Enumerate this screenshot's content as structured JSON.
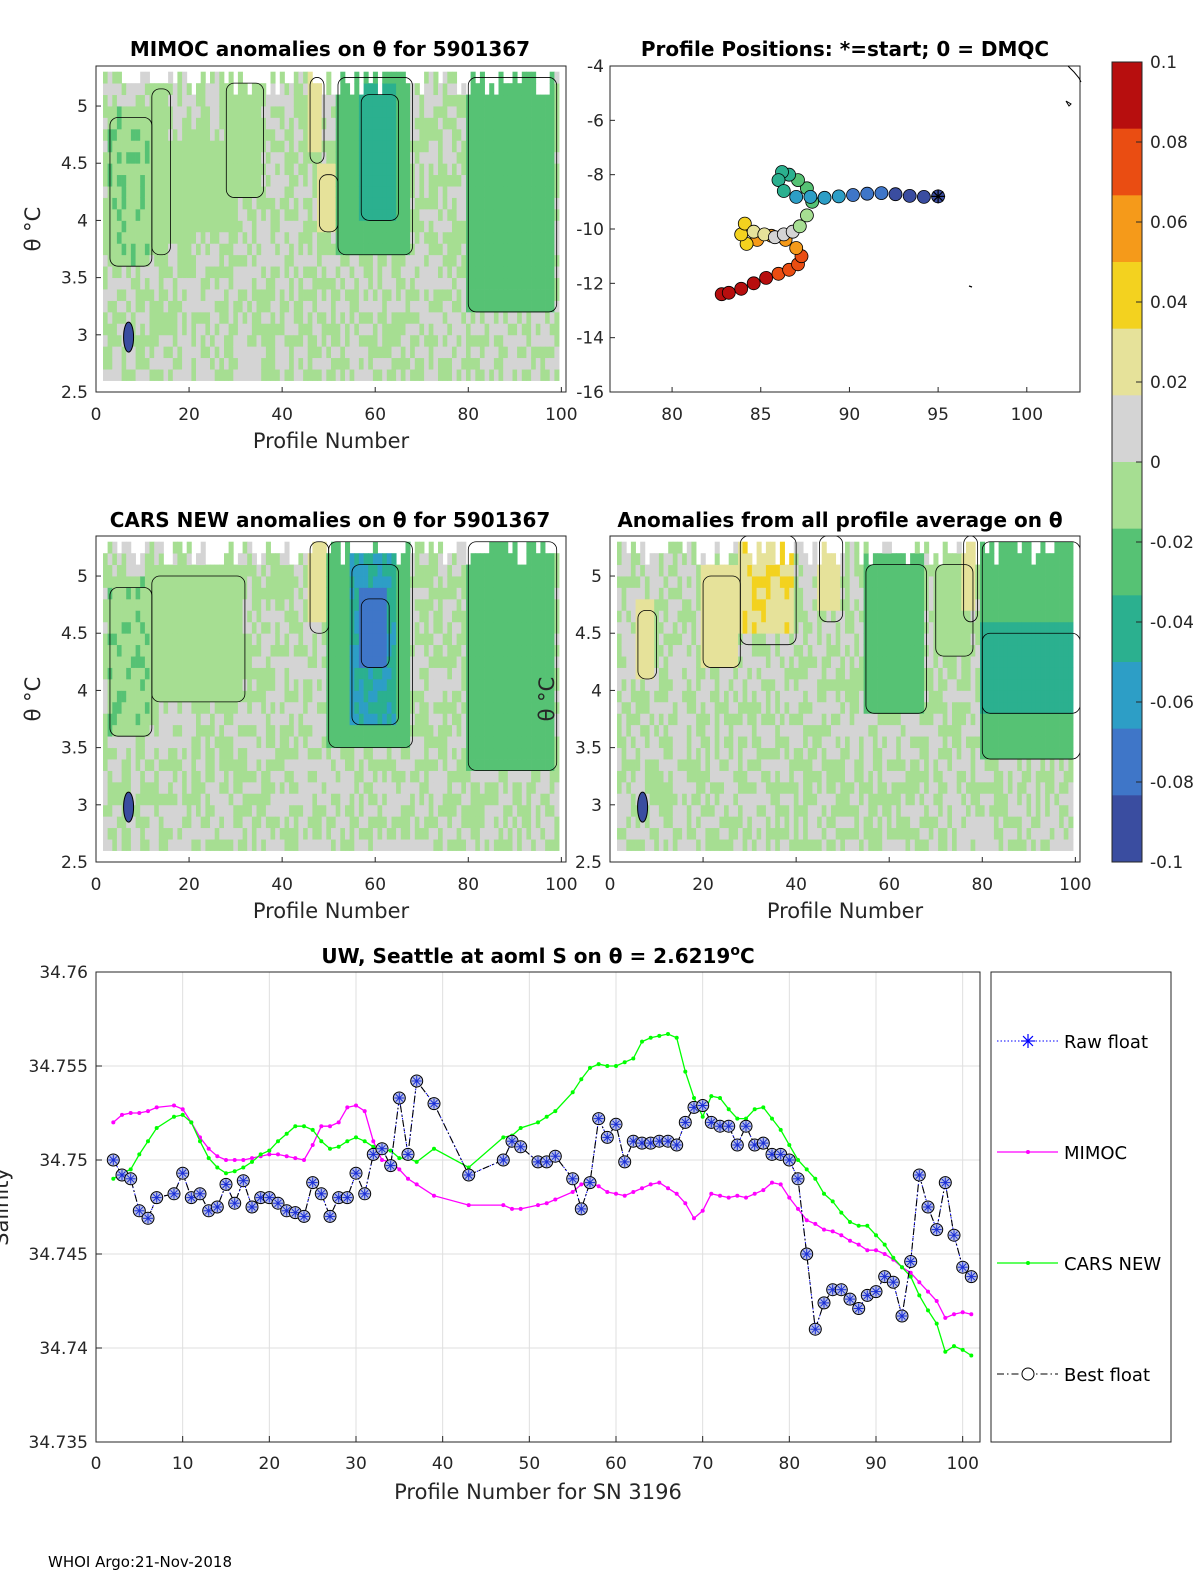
{
  "footer": "WHOI Argo:21-Nov-2018",
  "chart_data": [
    {
      "type": "heatmap",
      "title": "MIMOC anomalies on θ  for 5901367",
      "xlabel": "Profile Number",
      "ylabel": "θ °C",
      "xlim": [
        0,
        101
      ],
      "ylim": [
        2.5,
        5.35
      ],
      "xticks": [
        "0",
        "20",
        "40",
        "60",
        "80",
        "100"
      ],
      "yticks": [
        "2.5",
        "3",
        "3.5",
        "4",
        "4.5",
        "5"
      ],
      "bands": [
        {
          "from": 2,
          "to": 6,
          "t_lo": 2.6,
          "t_hi": 5.1,
          "value": 0.0
        },
        {
          "from": 3,
          "to": 12,
          "t_lo": 3.6,
          "t_hi": 4.9,
          "value": -0.015
        },
        {
          "from": 12,
          "to": 16,
          "t_lo": 3.7,
          "t_hi": 5.15,
          "value": -0.012
        },
        {
          "from": 16,
          "to": 30,
          "t_lo": 3.9,
          "t_hi": 4.6,
          "value": -0.008
        },
        {
          "from": 28,
          "to": 36,
          "t_lo": 4.2,
          "t_hi": 5.2,
          "value": -0.012
        },
        {
          "from": 46,
          "to": 49,
          "t_lo": 4.5,
          "t_hi": 5.25,
          "value": 0.03
        },
        {
          "from": 48,
          "to": 52,
          "t_lo": 3.9,
          "t_hi": 4.4,
          "value": 0.02
        },
        {
          "from": 52,
          "to": 68,
          "t_lo": 3.7,
          "t_hi": 5.25,
          "value": -0.02
        },
        {
          "from": 57,
          "to": 65,
          "t_lo": 4.0,
          "t_hi": 5.1,
          "value": -0.04
        },
        {
          "from": 80,
          "to": 99,
          "t_lo": 3.2,
          "t_hi": 5.25,
          "value": -0.02
        }
      ],
      "blobs": [
        {
          "x": 7,
          "t": 2.98,
          "value": -0.1
        }
      ]
    },
    {
      "type": "scatter",
      "title": "Profile Positions: *=start; 0 = DMQC",
      "xlabel": "",
      "ylabel": "",
      "xlim": [
        76.5,
        103
      ],
      "ylim": [
        -16,
        -4
      ],
      "xticks": [
        "80",
        "85",
        "90",
        "95",
        "100"
      ],
      "yticks": [
        "-16",
        "-14",
        "-12",
        "-10",
        "-8",
        "-6",
        "-4"
      ],
      "track_lon": [
        95.0,
        94.2,
        93.4,
        92.6,
        91.8,
        91.0,
        90.2,
        89.4,
        88.6,
        87.8,
        87.0,
        86.3,
        86.0,
        86.2,
        86.6,
        87.1,
        87.6,
        87.9,
        87.6,
        87.2,
        86.8,
        86.3,
        85.8,
        85.2,
        84.6,
        84.1,
        83.9,
        84.2,
        84.8,
        85.6,
        86.4,
        87.0,
        87.3,
        87.1,
        86.6,
        86.0,
        85.3,
        84.6,
        83.9,
        83.2,
        82.8
      ],
      "track_lat": [
        -8.8,
        -8.82,
        -8.78,
        -8.72,
        -8.68,
        -8.7,
        -8.75,
        -8.8,
        -8.85,
        -8.82,
        -8.82,
        -8.6,
        -8.2,
        -7.9,
        -8.0,
        -8.2,
        -8.5,
        -9.0,
        -9.5,
        -9.9,
        -10.1,
        -10.2,
        -10.3,
        -10.2,
        -10.1,
        -9.8,
        -10.2,
        -10.55,
        -10.4,
        -10.25,
        -10.4,
        -10.7,
        -11.0,
        -11.3,
        -11.5,
        -11.65,
        -11.8,
        -12.0,
        -12.2,
        -12.35,
        -12.4
      ],
      "track_value": [
        -0.1,
        -0.095,
        -0.09,
        -0.085,
        -0.08,
        -0.075,
        -0.07,
        -0.066,
        -0.062,
        -0.058,
        -0.054,
        -0.05,
        -0.045,
        -0.04,
        -0.035,
        -0.03,
        -0.024,
        -0.018,
        -0.012,
        -0.006,
        0.0,
        0.008,
        0.016,
        0.024,
        0.03,
        0.036,
        0.04,
        0.044,
        0.05,
        0.056,
        0.06,
        0.064,
        0.068,
        0.072,
        0.076,
        0.08,
        0.085,
        0.09,
        0.094,
        0.097,
        0.1
      ]
    },
    {
      "type": "heatmap",
      "title": "CARS NEW anomalies on θ for 5901367",
      "xlabel": "Profile Number",
      "ylabel": "θ °C",
      "xlim": [
        0,
        101
      ],
      "ylim": [
        2.5,
        5.35
      ],
      "xticks": [
        "0",
        "20",
        "40",
        "60",
        "80",
        "100"
      ],
      "yticks": [
        "2.5",
        "3",
        "3.5",
        "4",
        "4.5",
        "5"
      ],
      "bands": [
        {
          "from": 2,
          "to": 6,
          "t_lo": 2.6,
          "t_hi": 5.1,
          "value": 0.0
        },
        {
          "from": 3,
          "to": 12,
          "t_lo": 3.6,
          "t_hi": 4.9,
          "value": -0.015
        },
        {
          "from": 12,
          "to": 32,
          "t_lo": 3.9,
          "t_hi": 5.0,
          "value": -0.012
        },
        {
          "from": 46,
          "to": 50,
          "t_lo": 4.5,
          "t_hi": 5.3,
          "value": 0.028
        },
        {
          "from": 50,
          "to": 68,
          "t_lo": 3.5,
          "t_hi": 5.3,
          "value": -0.025
        },
        {
          "from": 55,
          "to": 65,
          "t_lo": 3.7,
          "t_hi": 5.1,
          "value": -0.05
        },
        {
          "from": 57,
          "to": 63,
          "t_lo": 4.2,
          "t_hi": 4.8,
          "value": -0.07
        },
        {
          "from": 80,
          "to": 99,
          "t_lo": 3.3,
          "t_hi": 5.3,
          "value": -0.02
        }
      ],
      "blobs": [
        {
          "x": 7,
          "t": 2.98,
          "value": -0.1
        }
      ]
    },
    {
      "type": "heatmap",
      "title": "Anomalies from all profile average on θ",
      "xlabel": "Profile Number",
      "ylabel": "θ °C",
      "xlim": [
        0,
        101
      ],
      "ylim": [
        2.5,
        5.35
      ],
      "xticks": [
        "0",
        "20",
        "40",
        "60",
        "80",
        "100"
      ],
      "yticks": [
        "2.5",
        "3",
        "3.5",
        "4",
        "4.5",
        "5"
      ],
      "bands": [
        {
          "from": 6,
          "to": 10,
          "t_lo": 4.1,
          "t_hi": 4.7,
          "value": 0.025
        },
        {
          "from": 20,
          "to": 28,
          "t_lo": 4.2,
          "t_hi": 5.0,
          "value": 0.02
        },
        {
          "from": 28,
          "to": 40,
          "t_lo": 4.4,
          "t_hi": 5.35,
          "value": 0.032
        },
        {
          "from": 45,
          "to": 50,
          "t_lo": 4.6,
          "t_hi": 5.35,
          "value": 0.028
        },
        {
          "from": 55,
          "to": 68,
          "t_lo": 3.8,
          "t_hi": 5.1,
          "value": -0.025
        },
        {
          "from": 70,
          "to": 78,
          "t_lo": 4.3,
          "t_hi": 5.1,
          "value": -0.01
        },
        {
          "from": 76,
          "to": 79,
          "t_lo": 4.6,
          "t_hi": 5.35,
          "value": 0.022
        },
        {
          "from": 80,
          "to": 101,
          "t_lo": 3.4,
          "t_hi": 5.3,
          "value": -0.03
        },
        {
          "from": 80,
          "to": 101,
          "t_lo": 3.8,
          "t_hi": 4.5,
          "value": -0.045
        }
      ],
      "blobs": [
        {
          "x": 7,
          "t": 2.98,
          "value": -0.1
        }
      ]
    },
    {
      "type": "line",
      "title": "UW, Seattle at aoml S on θ = 2.6219",
      "title_sup": "o",
      "title_unit": "C",
      "xlabel": "Profile Number for SN 3196",
      "ylabel": "Salinity",
      "xlim": [
        0,
        102
      ],
      "ylim": [
        34.735,
        34.76
      ],
      "xticks": [
        "0",
        "10",
        "20",
        "30",
        "40",
        "50",
        "60",
        "70",
        "80",
        "90",
        "100"
      ],
      "yticks": [
        "34.735",
        "34.74",
        "34.745",
        "34.75",
        "34.755",
        "34.76"
      ],
      "x": [
        2,
        3,
        4,
        5,
        6,
        7,
        9,
        10,
        11,
        12,
        13,
        14,
        15,
        16,
        17,
        18,
        19,
        20,
        21,
        22,
        23,
        24,
        25,
        26,
        27,
        28,
        29,
        30,
        31,
        32,
        33,
        34,
        35,
        36,
        37,
        39,
        43,
        47,
        48,
        49,
        51,
        52,
        53,
        55,
        56,
        57,
        58,
        59,
        60,
        61,
        62,
        63,
        64,
        65,
        66,
        67,
        68,
        69,
        70,
        71,
        72,
        73,
        74,
        75,
        76,
        77,
        78,
        79,
        80,
        81,
        82,
        83,
        84,
        85,
        86,
        87,
        88,
        89,
        90,
        91,
        92,
        93,
        94,
        95,
        96,
        97,
        98,
        99,
        100,
        101
      ],
      "series": [
        {
          "name": "Raw float",
          "color": "#0000ff",
          "values": [
            34.75,
            34.7492,
            34.749,
            34.7473,
            34.7469,
            34.748,
            34.7482,
            34.7493,
            34.748,
            34.7482,
            34.7473,
            34.7475,
            34.7487,
            34.7477,
            34.7489,
            34.7475,
            34.748,
            34.748,
            34.7477,
            34.7473,
            34.7472,
            34.747,
            34.7488,
            34.7482,
            34.747,
            34.748,
            34.748,
            34.7493,
            34.7482,
            34.7503,
            34.7506,
            34.7497,
            34.7533,
            34.7503,
            34.7542,
            34.753,
            34.7492,
            34.75,
            34.751,
            34.7507,
            34.7499,
            34.7499,
            34.7502,
            34.749,
            34.7474,
            34.7488,
            34.7522,
            34.7512,
            34.7519,
            34.7499,
            34.751,
            34.7509,
            34.7509,
            34.751,
            34.751,
            34.7508,
            34.752,
            34.7528,
            34.7529,
            34.752,
            34.7518,
            34.7518,
            34.7508,
            34.7518,
            34.7508,
            34.7509,
            34.7503,
            34.7503,
            34.75,
            34.749,
            34.745,
            34.741,
            34.7424,
            34.7431,
            34.7431,
            34.7426,
            34.7421,
            34.7428,
            34.743,
            34.7438,
            34.7435,
            34.7417,
            34.7446,
            34.7492,
            34.7475,
            34.7463,
            34.7488,
            34.746,
            34.7443,
            34.7438
          ]
        },
        {
          "name": "MIMOC",
          "color": "#ff00ff",
          "values": [
            34.752,
            34.7524,
            34.7525,
            34.7525,
            34.7526,
            34.7528,
            34.7529,
            34.7527,
            34.752,
            34.7512,
            34.7506,
            34.7502,
            34.75,
            34.75,
            34.75,
            34.7501,
            34.7502,
            34.7503,
            34.7503,
            34.7502,
            34.7501,
            34.75,
            34.7508,
            34.7518,
            34.7518,
            34.752,
            34.7528,
            34.7529,
            34.7526,
            34.751,
            34.75,
            34.7499,
            34.7495,
            34.749,
            34.7487,
            34.7481,
            34.7476,
            34.7476,
            34.7474,
            34.7474,
            34.7476,
            34.7477,
            34.7479,
            34.7483,
            34.7487,
            34.7488,
            34.7486,
            34.7483,
            34.7482,
            34.7481,
            34.7483,
            34.7485,
            34.7487,
            34.7488,
            34.7485,
            34.7482,
            34.7477,
            34.7469,
            34.7473,
            34.7482,
            34.7481,
            34.748,
            34.7481,
            34.748,
            34.7482,
            34.7484,
            34.7488,
            34.7487,
            34.748,
            34.7474,
            34.7468,
            34.7466,
            34.7463,
            34.7462,
            34.746,
            34.7457,
            34.7455,
            34.7452,
            34.7452,
            34.745,
            34.7447,
            34.7443,
            34.744,
            34.7435,
            34.743,
            34.7425,
            34.7416,
            34.7418,
            34.7419,
            34.7418
          ]
        },
        {
          "name": "CARS NEW",
          "color": "#00ff00",
          "values": [
            34.749,
            34.7493,
            34.7495,
            34.7503,
            34.751,
            34.7517,
            34.7523,
            34.7524,
            34.752,
            34.751,
            34.7501,
            34.7496,
            34.7493,
            34.7494,
            34.7496,
            34.7499,
            34.7503,
            34.7505,
            34.751,
            34.7514,
            34.7518,
            34.7518,
            34.7516,
            34.751,
            34.7506,
            34.7507,
            34.751,
            34.7512,
            34.751,
            34.7507,
            34.7505,
            34.7505,
            34.7501,
            34.7501,
            34.7499,
            34.7506,
            34.7496,
            34.7512,
            34.7513,
            34.7517,
            34.752,
            34.7523,
            34.7526,
            34.7536,
            34.7543,
            34.7549,
            34.7551,
            34.755,
            34.755,
            34.7552,
            34.7554,
            34.7563,
            34.7565,
            34.7566,
            34.7567,
            34.7565,
            34.7547,
            34.7533,
            34.7523,
            34.7534,
            34.7533,
            34.7527,
            34.7522,
            34.7522,
            34.7527,
            34.7528,
            34.7522,
            34.7516,
            34.7508,
            34.75,
            34.7495,
            34.749,
            34.7482,
            34.7478,
            34.7472,
            34.7467,
            34.7465,
            34.7465,
            34.746,
            34.7455,
            34.7448,
            34.7443,
            34.7438,
            34.7428,
            34.742,
            34.7413,
            34.7398,
            34.7401,
            34.7399,
            34.7396
          ]
        },
        {
          "name": "Best float",
          "color": "#000000",
          "values": [
            34.75,
            34.7492,
            34.749,
            34.7473,
            34.7469,
            34.748,
            34.7482,
            34.7493,
            34.748,
            34.7482,
            34.7473,
            34.7475,
            34.7487,
            34.7477,
            34.7489,
            34.7475,
            34.748,
            34.748,
            34.7477,
            34.7473,
            34.7472,
            34.747,
            34.7488,
            34.7482,
            34.747,
            34.748,
            34.748,
            34.7493,
            34.7482,
            34.7503,
            34.7506,
            34.7497,
            34.7533,
            34.7503,
            34.7542,
            34.753,
            34.7492,
            34.75,
            34.751,
            34.7507,
            34.7499,
            34.7499,
            34.7502,
            34.749,
            34.7474,
            34.7488,
            34.7522,
            34.7512,
            34.7519,
            34.7499,
            34.751,
            34.7509,
            34.7509,
            34.751,
            34.751,
            34.7508,
            34.752,
            34.7528,
            34.7529,
            34.752,
            34.7518,
            34.7518,
            34.7508,
            34.7518,
            34.7508,
            34.7509,
            34.7503,
            34.7503,
            34.75,
            34.749,
            34.745,
            34.741,
            34.7424,
            34.7431,
            34.7431,
            34.7426,
            34.7421,
            34.7428,
            34.743,
            34.7438,
            34.7435,
            34.7417,
            34.7446,
            34.7492,
            34.7475,
            34.7463,
            34.7488,
            34.746,
            34.7443,
            34.7438
          ]
        }
      ],
      "legend": [
        "Raw float",
        "MIMOC",
        "CARS NEW",
        "Best float"
      ],
      "grid": true
    }
  ],
  "colorbar": {
    "range": [
      -0.1,
      0.1
    ],
    "ticks": [
      "0.1",
      "0.08",
      "0.06",
      "0.04",
      "0.02",
      "0",
      "-0.02",
      "-0.04",
      "-0.06",
      "-0.08",
      "-0.1"
    ],
    "colors": [
      "#3a4da0",
      "#3f76c8",
      "#2d9ec6",
      "#2bb08f",
      "#56c274",
      "#a6de92",
      "#d4d4d4",
      "#e6e29a",
      "#f3d21f",
      "#f59a1a",
      "#ea4d12",
      "#b70e0e"
    ]
  }
}
